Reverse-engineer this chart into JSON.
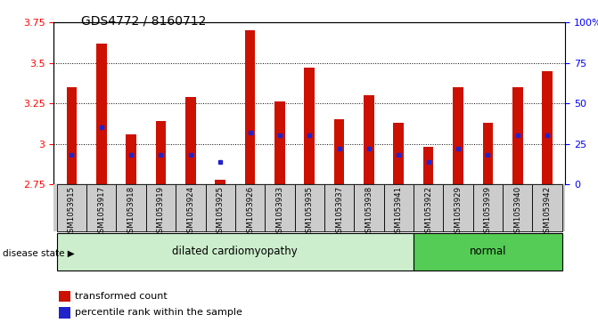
{
  "title": "GDS4772 / 8160712",
  "samples": [
    "GSM1053915",
    "GSM1053917",
    "GSM1053918",
    "GSM1053919",
    "GSM1053924",
    "GSM1053925",
    "GSM1053926",
    "GSM1053933",
    "GSM1053935",
    "GSM1053937",
    "GSM1053938",
    "GSM1053941",
    "GSM1053922",
    "GSM1053929",
    "GSM1053939",
    "GSM1053940",
    "GSM1053942"
  ],
  "transformed_count": [
    3.35,
    3.62,
    3.06,
    3.14,
    3.29,
    2.775,
    3.7,
    3.26,
    3.47,
    3.15,
    3.3,
    3.13,
    2.98,
    3.35,
    3.13,
    3.35,
    3.45
  ],
  "percentile_rank_pct": [
    18,
    35,
    18,
    18,
    18,
    14,
    32,
    30,
    30,
    22,
    22,
    18,
    14,
    22,
    18,
    30,
    30
  ],
  "disease_state": [
    "dilated",
    "dilated",
    "dilated",
    "dilated",
    "dilated",
    "dilated",
    "dilated",
    "dilated",
    "dilated",
    "dilated",
    "dilated",
    "dilated",
    "normal",
    "normal",
    "normal",
    "normal",
    "normal"
  ],
  "ylim_left": [
    2.75,
    3.75
  ],
  "ylim_right": [
    0,
    100
  ],
  "yticks_left": [
    2.75,
    3.0,
    3.25,
    3.5,
    3.75
  ],
  "yticks_left_labels": [
    "2.75",
    "3",
    "3.25",
    "3.5",
    "3.75"
  ],
  "yticks_right": [
    0,
    25,
    50,
    75,
    100
  ],
  "yticks_right_labels": [
    "0",
    "25",
    "50",
    "75",
    "100%"
  ],
  "bar_bottom": 2.75,
  "bar_color": "#CC1100",
  "dot_color": "#2222CC",
  "dilated_color": "#cceecc",
  "normal_color": "#55cc55",
  "bg_color": "#cccccc",
  "legend_red": "transformed count",
  "legend_blue": "percentile rank within the sample",
  "disease_label": "disease state",
  "dilated_label": "dilated cardiomyopathy",
  "normal_label": "normal",
  "bar_width": 0.35
}
